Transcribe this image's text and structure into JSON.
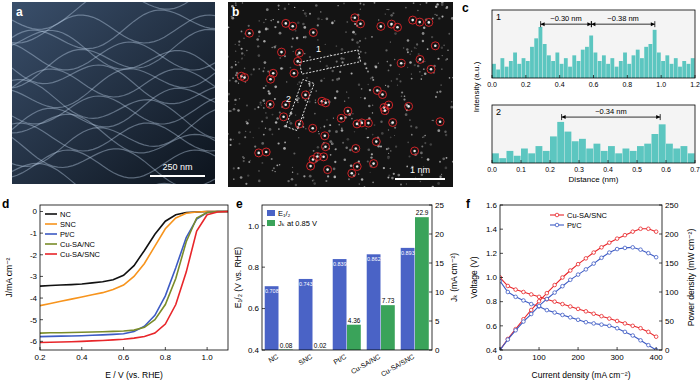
{
  "figure": {
    "panel_labels": [
      "a",
      "b",
      "c",
      "d",
      "e",
      "f"
    ],
    "scale_bars": [
      "250 nm",
      "1 nm"
    ],
    "regions": [
      "1",
      "2"
    ]
  },
  "chart_data": [
    {
      "type": "histogram",
      "title": "1",
      "y_label": "Intensity (a.u.)",
      "color": "#5cc6c0",
      "tick_labels": "x",
      "bins": [
        0,
        0.025,
        0.05,
        0.075,
        0.1,
        0.125,
        0.15,
        0.175,
        0.2,
        0.225,
        0.25,
        0.275,
        0.3,
        0.325,
        0.35,
        0.375,
        0.4,
        0.425,
        0.45,
        0.475,
        0.5,
        0.525,
        0.55,
        0.575,
        0.6,
        0.625,
        0.65,
        0.675,
        0.7,
        0.725,
        0.75,
        0.775,
        0.8,
        0.825,
        0.85,
        0.875,
        0.9,
        0.925,
        0.95,
        0.975,
        1.0,
        1.025,
        1.05,
        1.075,
        1.1,
        1.125,
        1.15,
        1.175,
        1.2
      ],
      "counts": [
        0.25,
        0.15,
        0.35,
        0.2,
        0.3,
        0.45,
        0.25,
        0.35,
        0.3,
        0.55,
        0.7,
        0.9,
        0.6,
        0.4,
        0.3,
        0.45,
        0.25,
        0.35,
        0.2,
        0.4,
        0.3,
        0.5,
        0.55,
        0.75,
        0.45,
        0.3,
        0.4,
        0.25,
        0.35,
        0.2,
        0.3,
        0.45,
        0.25,
        0.4,
        0.5,
        0.35,
        0.55,
        0.6,
        0.85,
        0.45,
        0.3,
        0.4,
        0.25,
        0.35,
        0.2,
        0.3,
        0.25,
        0.35
      ],
      "xlim": [
        0,
        1.2
      ],
      "xticks": [
        {
          "value": 0,
          "label": "0.0"
        },
        0.2,
        0.4,
        0.6,
        0.8,
        {
          "value": 1,
          "label": "1.0"
        },
        1.2
      ],
      "ylim": [
        0,
        1.2
      ],
      "annotations": [
        {
          "text": "~0.30 nm",
          "x": [
            0.2875,
            0.5875
          ],
          "y": 0.95
        },
        {
          "text": "~0.38 nm",
          "x": [
            0.5875,
            0.9625
          ],
          "y": 0.95
        }
      ]
    },
    {
      "type": "histogram",
      "title": "2",
      "x_label": "Distance (nm)",
      "color": "#5cc6c0",
      "tick_labels": "x",
      "bins": [
        0,
        0.025,
        0.05,
        0.075,
        0.1,
        0.125,
        0.15,
        0.175,
        0.2,
        0.225,
        0.25,
        0.275,
        0.3,
        0.325,
        0.35,
        0.375,
        0.4,
        0.425,
        0.45,
        0.475,
        0.5,
        0.525,
        0.55,
        0.575,
        0.6,
        0.625,
        0.65,
        0.675,
        0.7
      ],
      "counts": [
        0.2,
        0.1,
        0.25,
        0.15,
        0.3,
        0.2,
        0.35,
        0.25,
        0.55,
        0.85,
        0.65,
        0.45,
        0.5,
        0.3,
        0.4,
        0.25,
        0.35,
        0.2,
        0.3,
        0.25,
        0.35,
        0.4,
        0.6,
        0.8,
        0.4,
        0.3,
        0.35,
        0.2
      ],
      "xlim": [
        0,
        0.7
      ],
      "xticks": [
        {
          "value": 0,
          "label": "0.0"
        },
        0.1,
        0.2,
        0.3,
        0.4,
        0.5,
        0.6,
        0.7
      ],
      "ylim": [
        0,
        1.2
      ],
      "annotations": [
        {
          "text": "~0.34 nm",
          "x": [
            0.24,
            0.58
          ],
          "y": 0.95
        }
      ]
    },
    {
      "type": "line",
      "x_label": "E / V (vs. RHE)",
      "y_label": "J/mA cm⁻²",
      "legend": "upper left",
      "x": [
        0.2,
        0.25,
        0.3,
        0.35,
        0.4,
        0.45,
        0.5,
        0.55,
        0.6,
        0.65,
        0.7,
        0.75,
        0.8,
        0.85,
        0.9,
        0.95,
        1.0,
        1.05,
        1.1
      ],
      "series": [
        {
          "name": "NC",
          "color": "#111111",
          "values": [
            -3.45,
            -3.42,
            -3.4,
            -3.38,
            -3.35,
            -3.3,
            -3.25,
            -3.15,
            -2.95,
            -2.5,
            -1.8,
            -1.05,
            -0.45,
            -0.15,
            -0.05,
            -0.02,
            0,
            0,
            0
          ]
        },
        {
          "name": "SNC",
          "color": "#f7941d",
          "values": [
            -4.35,
            -4.25,
            -4.15,
            -4.05,
            -3.95,
            -3.85,
            -3.75,
            -3.6,
            -3.4,
            -3.0,
            -2.4,
            -1.6,
            -0.8,
            -0.3,
            -0.08,
            -0.02,
            0,
            0,
            0
          ]
        },
        {
          "name": "Pt/C",
          "color": "#3d5bc4",
          "values": [
            -5.78,
            -5.77,
            -5.76,
            -5.75,
            -5.74,
            -5.72,
            -5.7,
            -5.68,
            -5.65,
            -5.55,
            -5.3,
            -4.8,
            -3.9,
            -2.6,
            -1.2,
            -0.35,
            -0.05,
            0,
            0
          ]
        },
        {
          "name": "Cu-SA/NC",
          "color": "#7a8c2a",
          "values": [
            -5.62,
            -5.6,
            -5.6,
            -5.59,
            -5.58,
            -5.57,
            -5.56,
            -5.54,
            -5.52,
            -5.48,
            -5.35,
            -5.0,
            -4.3,
            -3.1,
            -1.4,
            -0.3,
            -0.05,
            0,
            0
          ]
        },
        {
          "name": "Cu-SA/SNC",
          "color": "#e8262a",
          "values": [
            -6.05,
            -6.04,
            -6.03,
            -6.02,
            -6.0,
            -5.98,
            -5.96,
            -5.93,
            -5.9,
            -5.85,
            -5.78,
            -5.62,
            -5.2,
            -4.3,
            -2.8,
            -0.9,
            -0.15,
            -0.02,
            0
          ]
        }
      ],
      "xlim": [
        0.2,
        1.1
      ],
      "xticks": [
        0.2,
        0.4,
        0.6,
        0.8,
        {
          "value": 1,
          "label": "1.0"
        }
      ],
      "ylim": [
        -6.4,
        0.3
      ],
      "yticks": [
        -6,
        -5,
        -4,
        -3,
        -2,
        -1,
        0
      ]
    },
    {
      "type": "bar",
      "y_label": "E₁/₂ (V vs. RHE)",
      "y2_label": "Jₖ (mA cm⁻²)",
      "legend": "upper left",
      "data_labels": true,
      "categories": [
        "NC",
        "SNC",
        "Pt/C",
        "Cu-SA/NC",
        "Cu-SA/SNC"
      ],
      "series": [
        {
          "name": "E₁/₂",
          "color": "#4a63c6",
          "values": [
            0.708,
            0.743,
            0.839,
            0.862,
            0.893
          ]
        },
        {
          "name": "Jₖ at 0.85 V",
          "color": "#3aa35a",
          "axis": "y2",
          "values": [
            0.08,
            0.02,
            4.36,
            7.73,
            22.9
          ]
        }
      ],
      "ylim": [
        0.4,
        1.1
      ],
      "yticks": [
        0.4,
        0.6,
        0.8,
        {
          "value": 1,
          "label": "1.0"
        }
      ],
      "y2lim": [
        0,
        25
      ],
      "y2ticks": [
        0,
        5,
        10,
        15,
        20,
        25
      ]
    },
    {
      "type": "line",
      "x_label": "Current density (mA cm⁻²)",
      "y_label": "Voltage (V)",
      "y2_label": "Power density (mW cm⁻²)",
      "legend": "upper center",
      "x": [
        0,
        20,
        40,
        60,
        80,
        100,
        120,
        140,
        160,
        180,
        200,
        220,
        240,
        260,
        280,
        300,
        320,
        340,
        360,
        380,
        400
      ],
      "series": [
        {
          "name": "Cu-SA/SNC",
          "color": "#e8262a",
          "marker": "circle",
          "values": [
            1.0,
            0.93,
            0.9,
            0.88,
            0.86,
            0.84,
            0.82,
            0.8,
            0.78,
            0.76,
            0.74,
            0.72,
            0.7,
            0.68,
            0.66,
            0.64,
            0.62,
            0.6,
            0.58,
            0.55,
            0.51
          ]
        },
        {
          "name": "Pt/C",
          "color": "#3d5bc4",
          "marker": "circle",
          "values": [
            0.97,
            0.88,
            0.84,
            0.81,
            0.78,
            0.76,
            0.73,
            0.71,
            0.69,
            0.67,
            0.65,
            0.63,
            0.62,
            0.61,
            0.6,
            0.58,
            0.55,
            0.52,
            0.48,
            0.44,
            0.4
          ]
        },
        {
          "color": "#e8262a",
          "marker": "circle",
          "axis": "y2",
          "values": [
            0,
            19,
            36,
            53,
            69,
            84,
            98,
            112,
            125,
            137,
            148,
            158,
            168,
            177,
            185,
            192,
            198,
            204,
            209,
            209,
            204
          ]
        },
        {
          "color": "#3d5bc4",
          "marker": "circle",
          "axis": "y2",
          "values": [
            0,
            18,
            34,
            49,
            62,
            76,
            88,
            99,
            110,
            121,
            130,
            139,
            149,
            159,
            168,
            174,
            176,
            177,
            173,
            167,
            160
          ]
        }
      ],
      "xlim": [
        0,
        415
      ],
      "xticks": [
        0,
        100,
        200,
        300,
        400
      ],
      "ylim": [
        0.4,
        1.6
      ],
      "yticks": [
        0.4,
        0.6,
        0.8,
        {
          "value": 1,
          "label": "1.0"
        },
        1.2,
        1.4,
        1.6
      ],
      "y2lim": [
        0,
        250
      ],
      "y2ticks": [
        0,
        50,
        100,
        150,
        200,
        250
      ]
    }
  ]
}
